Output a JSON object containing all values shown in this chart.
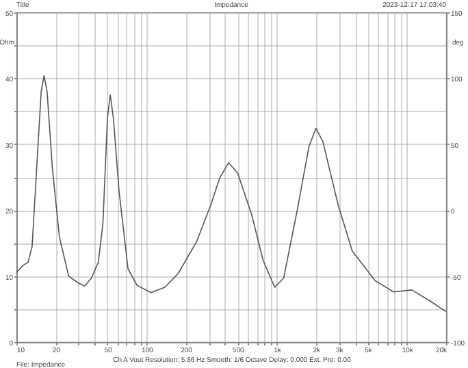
{
  "chart_data": {
    "type": "line",
    "title": "Impedance",
    "xlabel": "Ch A   Vout   Resolution: 5.86 Hz   Smooth: 1/6 Octave   Delay: 0.000   Ext. Pre: 0.00",
    "ylabel": "Ohm",
    "y2label": "deg",
    "annotations": [
      "Title",
      "2023-12-17 17:03:40",
      "File: Impedance"
    ],
    "log": "x",
    "grid": true,
    "marker": "none",
    "line_style": "solid",
    "xlim": [
      10,
      20000
    ],
    "xticks": [
      10,
      20,
      {
        "value": 30,
        "label": null
      },
      {
        "value": 40,
        "label": null
      },
      50,
      {
        "value": 60,
        "label": null
      },
      {
        "value": 70,
        "label": null
      },
      {
        "value": 80,
        "label": null
      },
      {
        "value": 90,
        "label": null
      },
      100,
      200,
      {
        "value": 300,
        "label": null
      },
      {
        "value": 400,
        "label": null
      },
      500,
      {
        "value": 600,
        "label": null
      },
      {
        "value": 700,
        "label": null
      },
      {
        "value": 800,
        "label": null
      },
      {
        "value": 900,
        "label": null
      },
      {
        "value": 1000,
        "label": "1k"
      },
      {
        "value": 2000,
        "label": "2k"
      },
      {
        "value": 3000,
        "label": "3k"
      },
      {
        "value": 4000,
        "label": null
      },
      {
        "value": 5000,
        "label": "5k"
      },
      {
        "value": 6000,
        "label": null
      },
      {
        "value": 7000,
        "label": null
      },
      {
        "value": 8000,
        "label": null
      },
      {
        "value": 9000,
        "label": null
      },
      {
        "value": 10000,
        "label": "10k"
      },
      {
        "value": 20000,
        "label": "20k"
      }
    ],
    "ylim": [
      0,
      50
    ],
    "yticks": [
      0,
      {
        "value": 5,
        "label": null
      },
      10,
      {
        "value": 15,
        "label": null
      },
      20,
      {
        "value": 25,
        "label": null
      },
      30,
      {
        "value": 35,
        "label": null
      },
      40,
      {
        "value": 45,
        "label": null
      },
      50
    ],
    "y2lim": [
      -100,
      150
    ],
    "y2ticks": [
      -100,
      -50,
      0,
      50,
      100,
      150
    ],
    "series": [
      {
        "color": "#555555",
        "x": [
          10,
          11.2,
          12.3,
          13.2,
          14.3,
          15.5,
          16.3,
          17.2,
          18.9,
          21.4,
          25.2,
          29.6,
          33.4,
          37.7,
          42.6,
          46.2,
          50,
          52.6,
          55.6,
          61.5,
          72,
          84.5,
          108,
          138,
          175,
          242,
          310,
          365,
          427,
          501,
          640,
          785,
          964,
          1130,
          1440,
          1770,
          2000,
          2260,
          2970,
          3800,
          5700,
          7900,
          10900,
          15100,
          20000
        ],
        "values": [
          10.5,
          11.6,
          12.1,
          14.5,
          26.3,
          38,
          40.4,
          38,
          26.3,
          15.9,
          10.0,
          9.0,
          8.5,
          9.7,
          12.1,
          18,
          33.9,
          37.5,
          33.9,
          22.8,
          11.1,
          8.6,
          7.5,
          8.3,
          10.4,
          15.2,
          20.7,
          24.9,
          27.2,
          25.6,
          19.4,
          12.4,
          8.3,
          9.7,
          20.1,
          29.7,
          32.4,
          30.4,
          20.7,
          13.8,
          9.3,
          7.6,
          7.9,
          6.2,
          4.6
        ]
      }
    ]
  }
}
